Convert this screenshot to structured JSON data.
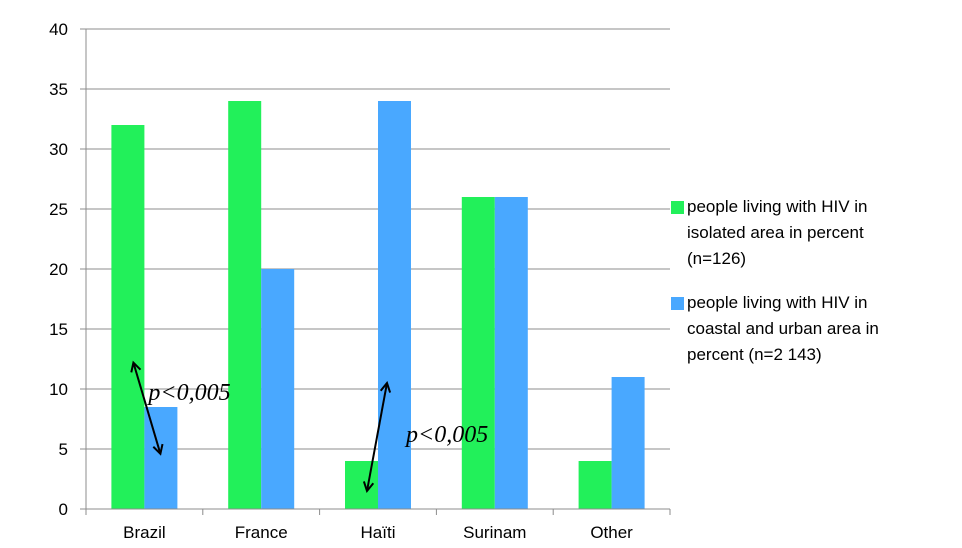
{
  "chart_data": {
    "type": "bar",
    "categories": [
      "Brazil",
      "France",
      "Haïti",
      "Surinam",
      "Other"
    ],
    "series": [
      {
        "name": "people living with HIV in isolated area in percent (n=126)",
        "color": "#22f05a",
        "values": [
          32,
          34,
          4,
          26,
          4
        ]
      },
      {
        "name": "people living with HIV in coastal and urban area in percent (n=2 143)",
        "color": "#49a8ff",
        "values": [
          8.5,
          20,
          34,
          26,
          11
        ]
      }
    ],
    "ylim": [
      0,
      40
    ],
    "yticks": [
      0,
      5,
      10,
      15,
      20,
      25,
      30,
      35,
      40
    ],
    "grid": true,
    "legend_position": "right",
    "legend_lines": [
      [
        "people living with HIV in",
        "isolated area in percent",
        "(n=126)"
      ],
      [
        "people living with HIV in",
        "coastal and urban area in",
        "percent (n=2 143)"
      ]
    ],
    "annotations": [
      {
        "text": "p<0,005",
        "category": "Brazil"
      },
      {
        "text": "p<0,005",
        "category": "Haïti"
      }
    ]
  }
}
